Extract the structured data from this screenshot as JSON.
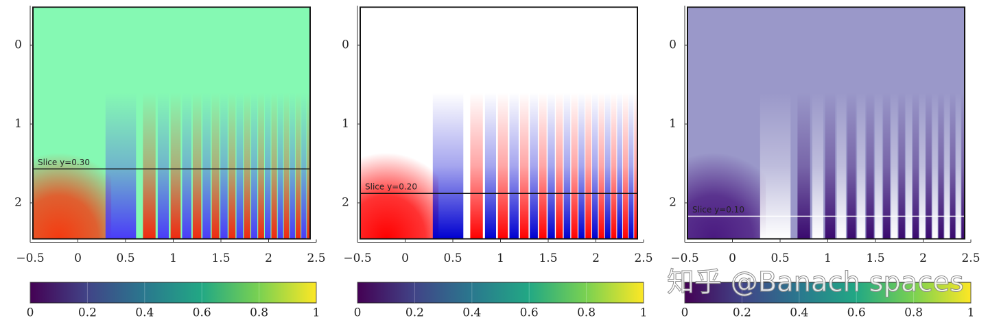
{
  "chart_data": [
    {
      "type": "heatmap",
      "annotation": "Slice y=0.30",
      "slice_line": 1.57,
      "slice_color": "#111111",
      "colors": [
        "#85f9b3",
        "#4a3cf8",
        "#f02a10",
        "#f53a10"
      ],
      "xlim": [
        -0.5,
        2.5
      ],
      "xticks": [
        {
          "value": -0.5,
          "label": "−0.5"
        },
        0,
        0.5,
        1,
        1.5,
        2,
        2.5
      ],
      "ylim": [
        2.5,
        -0.5
      ],
      "yticks": [
        0,
        1,
        2
      ],
      "colorbar": {
        "lim": [
          0,
          1
        ],
        "ticks": [
          0,
          0.2,
          0.4,
          0.6,
          0.8,
          1
        ]
      }
    },
    {
      "type": "heatmap",
      "annotation": "Slice y=0.20",
      "slice_line": 1.88,
      "slice_color": "#111111",
      "colors": [
        "#ffffff",
        "#0000d0",
        "#ff0000",
        "#ff0000"
      ],
      "xlim": [
        -0.5,
        2.5
      ],
      "xticks": [
        {
          "value": -0.5,
          "label": "−0.5"
        },
        0,
        0.5,
        1,
        1.5,
        2,
        2.5
      ],
      "ylim": [
        2.5,
        -0.5
      ],
      "yticks": [
        0,
        1,
        2
      ],
      "colorbar": {
        "lim": [
          0,
          1
        ],
        "ticks": [
          0,
          0.2,
          0.4,
          0.6,
          0.8,
          1
        ]
      }
    },
    {
      "type": "heatmap",
      "annotation": "Slice y=0.10",
      "slice_line": 2.17,
      "slice_color": "#ffffff",
      "colors": [
        "#9a98c9",
        "#ffffff",
        "#3a0a6e",
        "#4a1a80"
      ],
      "xlim": [
        -0.5,
        2.5
      ],
      "xticks": [
        {
          "value": -0.5,
          "label": "−0.5"
        },
        0,
        0.5,
        1,
        1.5,
        2,
        2.5
      ],
      "ylim": [
        2.5,
        -0.5
      ],
      "yticks": [
        0,
        1,
        2
      ],
      "colorbar": {
        "lim": [
          0,
          1
        ],
        "ticks": [
          0,
          0.2,
          0.4,
          0.6,
          0.8,
          1
        ]
      }
    }
  ],
  "watermark": "知乎 @Banach spaces"
}
